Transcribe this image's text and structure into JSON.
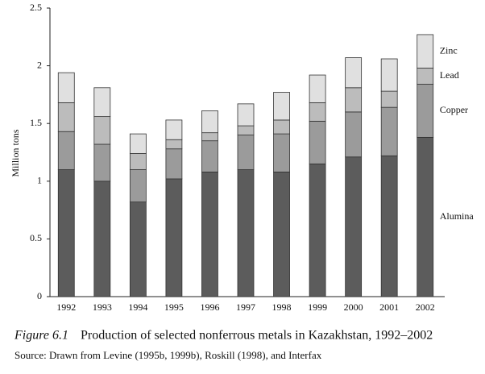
{
  "chart_data": {
    "type": "stacked_bar",
    "ylabel": "Million tons",
    "categories": [
      "1992",
      "1993",
      "1994",
      "1995",
      "1996",
      "1997",
      "1998",
      "1999",
      "2000",
      "2001",
      "2002"
    ],
    "series": [
      {
        "name": "Alumina",
        "color": "#5c5c5c",
        "values": [
          1.1,
          1.0,
          0.82,
          1.02,
          1.08,
          1.1,
          1.08,
          1.15,
          1.21,
          1.22,
          1.38
        ]
      },
      {
        "name": "Copper",
        "color": "#9b9b9b",
        "values": [
          0.33,
          0.32,
          0.28,
          0.26,
          0.27,
          0.3,
          0.33,
          0.37,
          0.39,
          0.42,
          0.46
        ]
      },
      {
        "name": "Lead",
        "color": "#bcbcbc",
        "values": [
          0.25,
          0.24,
          0.14,
          0.08,
          0.07,
          0.08,
          0.12,
          0.16,
          0.21,
          0.14,
          0.14
        ]
      },
      {
        "name": "Zinc",
        "color": "#e0e0e0",
        "values": [
          0.26,
          0.25,
          0.17,
          0.17,
          0.19,
          0.19,
          0.24,
          0.24,
          0.26,
          0.28,
          0.29
        ]
      }
    ],
    "ylim": [
      0,
      2.5
    ],
    "yticks": [
      0,
      0.5,
      1,
      1.5,
      2,
      2.5
    ],
    "grid": false,
    "figure_label": "Figure 6.1",
    "title": "Production of selected nonferrous metals in Kazakhstan, 1992–2002",
    "source": "Source: Drawn from Levine (1995b, 1999b), Roskill (1998), and Interfax"
  }
}
